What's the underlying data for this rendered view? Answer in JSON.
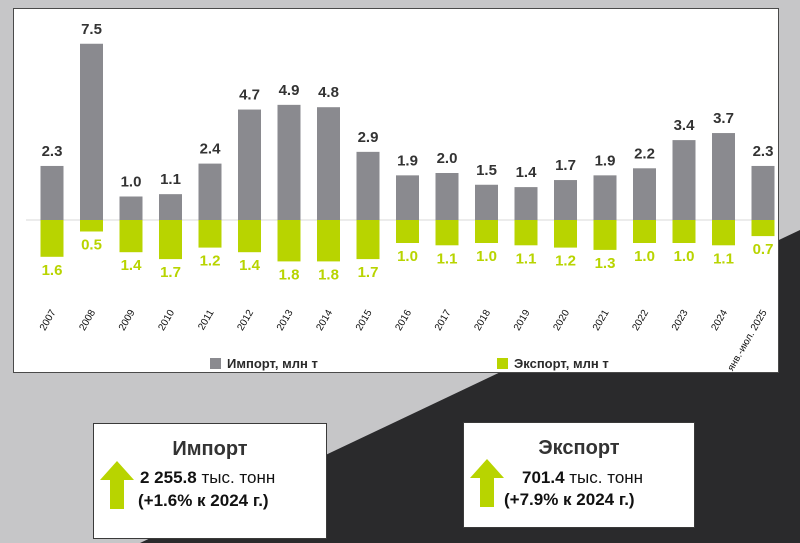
{
  "colors": {
    "import": "#8a8a8f",
    "export": "#b8d400",
    "dark_bg": "#2a2a2c",
    "gray_bg": "#c6c6c8"
  },
  "chart_data": {
    "type": "bar",
    "categories": [
      "2007",
      "2008",
      "2009",
      "2010",
      "2011",
      "2012",
      "2013",
      "2014",
      "2015",
      "2016",
      "2017",
      "2018",
      "2019",
      "2020",
      "2021",
      "2022",
      "2023",
      "2024",
      "янв.-июл. 2025"
    ],
    "series": [
      {
        "name": "Импорт, млн т",
        "values": [
          2.3,
          7.5,
          1.0,
          1.1,
          2.4,
          4.7,
          4.9,
          4.8,
          2.9,
          1.9,
          2.0,
          1.5,
          1.4,
          1.7,
          1.9,
          2.2,
          3.4,
          3.7,
          2.3
        ],
        "labels": [
          "2.3",
          "7.5",
          "1.0",
          "1.1",
          "2.4",
          "4.7",
          "4.9",
          "4.8",
          "2.9",
          "1.9",
          "2.0",
          "1.5",
          "1.4",
          "1.7",
          "1.9",
          "2.2",
          "3.4",
          "3.7",
          "2.3"
        ]
      },
      {
        "name": "Экспорт, млн т",
        "values": [
          1.6,
          0.5,
          1.4,
          1.7,
          1.2,
          1.4,
          1.8,
          1.8,
          1.7,
          1.0,
          1.1,
          1.0,
          1.1,
          1.2,
          1.3,
          1.0,
          1.0,
          1.1,
          0.7
        ],
        "labels": [
          "1.6",
          "0.5",
          "1.4",
          "1.7",
          "1.2",
          "1.4",
          "1.8",
          "1.8",
          "1.7",
          "1.0",
          "1.1",
          "1.0",
          "1.1",
          "1.2",
          "1.3",
          "1.0",
          "1.0",
          "1.1",
          "0.7"
        ]
      }
    ],
    "export_direction": "below-axis"
  },
  "legend": {
    "import": "Импорт, млн т",
    "export": "Экспорт, млн т"
  },
  "summary": {
    "import": {
      "title": "Импорт",
      "value": "2 255.8",
      "unit": " тыс. тонн",
      "change": "(+1.6% к 2024 г.)",
      "icon": "up-arrow-icon"
    },
    "export": {
      "title": "Экспорт",
      "value": "701.4",
      "unit": " тыс. тонн",
      "change": "(+7.9% к 2024 г.)",
      "icon": "up-arrow-icon"
    }
  }
}
